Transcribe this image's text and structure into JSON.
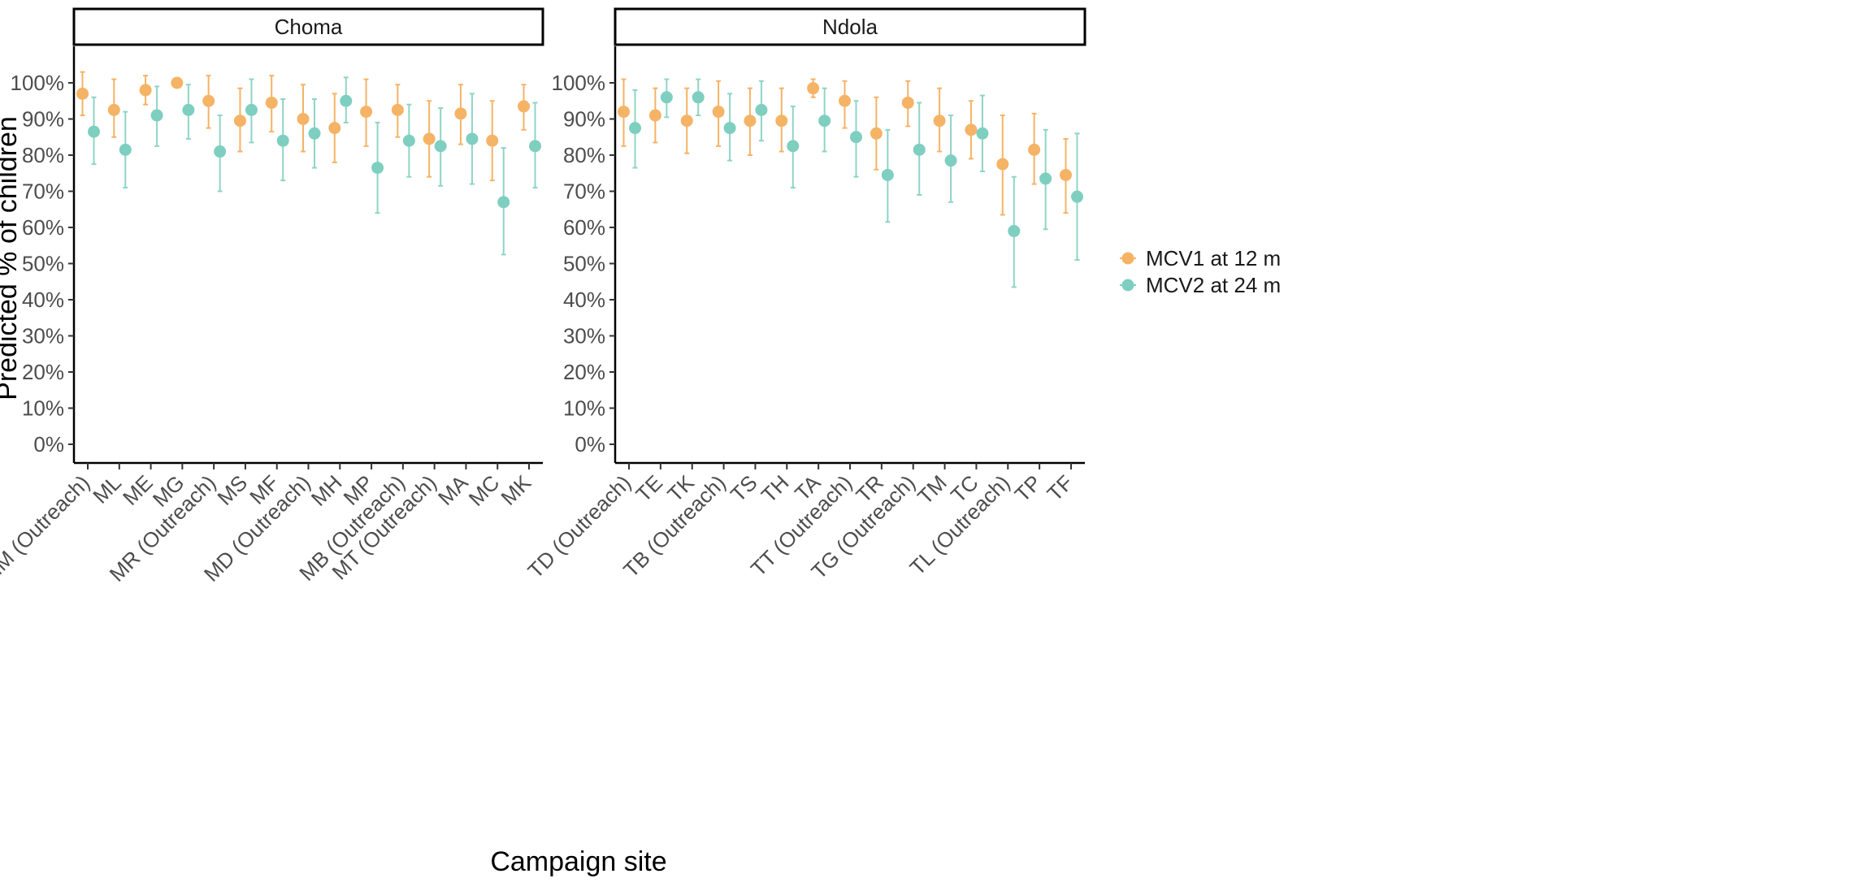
{
  "chart_data": {
    "type": "scatter",
    "subtype": "point-range (faceted)",
    "xlabel": "Campaign site",
    "ylabel": "Predicted % of children",
    "ylim": [
      0,
      100
    ],
    "yticks": [
      "0%",
      "10%",
      "20%",
      "30%",
      "40%",
      "50%",
      "60%",
      "70%",
      "80%",
      "90%",
      "100%"
    ],
    "legend": {
      "placement": "right",
      "entries": [
        {
          "label": "MCV1 at 12 m",
          "color": "#f5b366"
        },
        {
          "label": "MCV2 at 24 m",
          "color": "#7ecfc0"
        }
      ]
    },
    "facets": [
      {
        "title": "Choma",
        "categories": [
          "MM (Outreach)",
          "ML",
          "ME",
          "MG",
          "MR (Outreach)",
          "MS",
          "MF",
          "MD (Outreach)",
          "MH",
          "MP",
          "MB (Outreach)",
          "MT (Outreach)",
          "MA",
          "MC",
          "MK"
        ],
        "series": [
          {
            "name": "MCV1 at 12 m",
            "values": [
              97,
              92.5,
              98,
              100,
              95,
              89.5,
              94.5,
              90,
              87.5,
              92,
              92.5,
              84.5,
              91.5,
              84,
              93.5
            ],
            "lower": [
              91,
              85,
              94,
              99,
              87.5,
              81,
              86.5,
              81,
              78,
              82.5,
              85,
              74,
              83,
              73,
              87
            ],
            "upper": [
              103,
              101,
              102,
              101,
              102,
              98.5,
              102,
              99.5,
              97,
              101,
              99.5,
              95,
              99.5,
              95,
              99.5
            ]
          },
          {
            "name": "MCV2 at 24 m",
            "values": [
              86.5,
              81.5,
              91,
              92.5,
              81,
              92.5,
              84,
              86,
              95,
              76.5,
              84,
              82.5,
              84.5,
              67,
              82.5
            ],
            "lower": [
              77.5,
              71,
              82.5,
              84.5,
              70,
              83.5,
              73,
              76.5,
              89,
              64,
              74,
              71.5,
              72,
              52.5,
              71
            ],
            "upper": [
              96,
              92,
              99,
              99.5,
              91,
              101,
              95.5,
              95.5,
              101.5,
              89,
              94,
              93,
              97,
              82,
              94.5
            ]
          }
        ]
      },
      {
        "title": "Ndola",
        "categories": [
          "TD (Outreach)",
          "TE",
          "TK",
          "TB (Outreach)",
          "TS",
          "TH",
          "TA",
          "TT (Outreach)",
          "TR",
          "TG (Outreach)",
          "TM",
          "TC",
          "TL (Outreach)",
          "TP",
          "TF"
        ],
        "series": [
          {
            "name": "MCV1 at 12 m",
            "values": [
              92,
              91,
              89.5,
              92,
              89.5,
              89.5,
              98.5,
              95,
              86,
              94.5,
              89.5,
              87,
              77.5,
              81.5,
              74.5
            ],
            "lower": [
              82.5,
              83.5,
              80.5,
              82.5,
              80,
              81,
              96,
              87.5,
              76,
              88,
              81,
              79,
              63.5,
              72,
              64
            ],
            "upper": [
              101,
              98.5,
              98.5,
              100.5,
              98.5,
              98.5,
              101,
              100.5,
              96,
              100.5,
              98.5,
              95,
              91,
              91.5,
              84.5
            ]
          },
          {
            "name": "MCV2 at 24 m",
            "values": [
              87.5,
              96,
              96,
              87.5,
              92.5,
              82.5,
              89.5,
              85,
              74.5,
              81.5,
              78.5,
              86,
              59,
              73.5,
              68.5
            ],
            "lower": [
              76.5,
              90.5,
              91,
              78.5,
              84,
              71,
              81,
              74,
              61.5,
              69,
              67,
              75.5,
              43.5,
              59.5,
              51
            ],
            "upper": [
              98,
              101,
              101,
              97,
              100.5,
              93.5,
              98.5,
              95,
              87,
              94.5,
              91,
              96.5,
              74,
              87,
              86
            ]
          }
        ]
      }
    ]
  }
}
